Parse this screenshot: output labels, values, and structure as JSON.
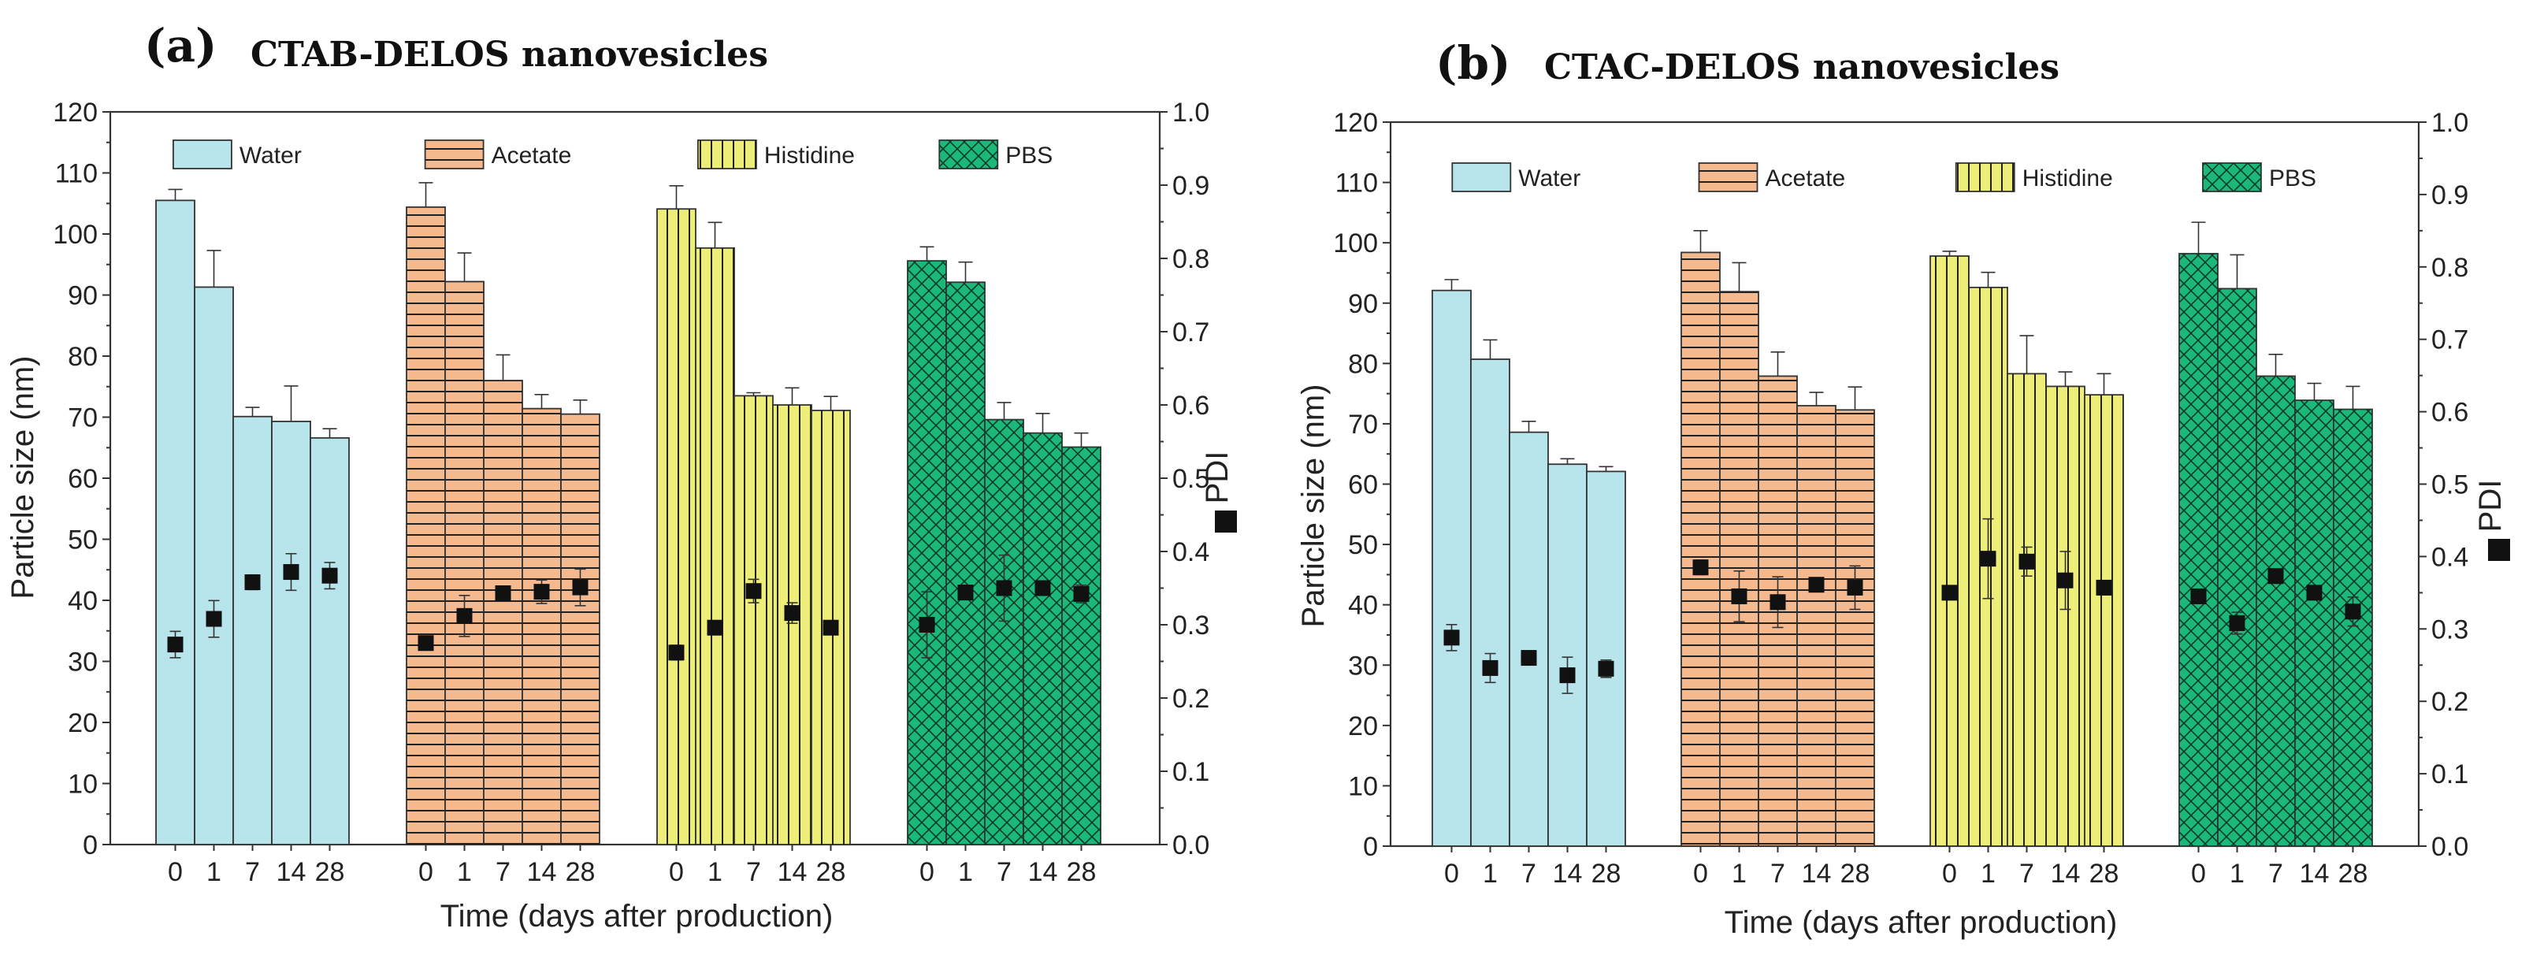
{
  "chart_data": [
    {
      "type": "bar",
      "panel_label": "(a)",
      "title": "CTAB-DELOS nanovesicles",
      "xlabel": "Time (days after production)",
      "ylabel": "Particle size (nm)",
      "y2label": "PDI",
      "ylim": [
        0,
        120
      ],
      "y2lim": [
        0.0,
        1.0
      ],
      "yticks": [
        "0",
        "10",
        "20",
        "30",
        "40",
        "50",
        "60",
        "70",
        "80",
        "90",
        "100",
        "110",
        "120"
      ],
      "y2ticks": [
        "0.0",
        "0.1",
        "0.2",
        "0.3",
        "0.4",
        "0.5",
        "0.6",
        "0.7",
        "0.8",
        "0.9",
        "1.0"
      ],
      "categories": [
        "0",
        "1",
        "7",
        "14",
        "28"
      ],
      "series": [
        {
          "name": "Water",
          "color": "#b8e4ec",
          "pattern": "none",
          "values": [
            105.5,
            91.3,
            70.1,
            69.3,
            66.6
          ],
          "errors": [
            1.8,
            6.0,
            1.5,
            5.8,
            1.5
          ],
          "pdi": [
            0.273,
            0.308,
            0.358,
            0.372,
            0.367
          ],
          "pdi_errors": [
            0.018,
            0.025,
            0.01,
            0.025,
            0.018
          ]
        },
        {
          "name": "Acetate",
          "color": "#f5b990",
          "pattern": "hlines",
          "values": [
            104.4,
            92.2,
            76.0,
            71.4,
            70.5
          ],
          "errors": [
            4.0,
            4.7,
            4.2,
            2.3,
            2.3
          ],
          "pdi": [
            0.275,
            0.312,
            0.343,
            0.345,
            0.351
          ],
          "pdi_errors": [
            0.006,
            0.028,
            0.006,
            0.016,
            0.025
          ]
        },
        {
          "name": "Histidine",
          "color": "#eded7a",
          "pattern": "vlines",
          "values": [
            104.1,
            97.7,
            73.5,
            72.0,
            71.1
          ],
          "errors": [
            3.8,
            4.2,
            0.5,
            2.8,
            2.3
          ],
          "pdi": [
            0.262,
            0.296,
            0.346,
            0.316,
            0.296
          ],
          "pdi_errors": [
            0.01,
            0.006,
            0.016,
            0.014,
            0.006
          ]
        },
        {
          "name": "PBS",
          "color": "#1cb87a",
          "pattern": "crosshatch",
          "values": [
            95.6,
            92.1,
            69.6,
            67.4,
            65.1
          ],
          "errors": [
            2.3,
            3.3,
            2.8,
            3.2,
            2.3
          ],
          "pdi": [
            0.3,
            0.344,
            0.35,
            0.35,
            0.342
          ],
          "pdi_errors": [
            0.045,
            0.006,
            0.045,
            0.006,
            0.012
          ]
        }
      ]
    },
    {
      "type": "bar",
      "panel_label": "(b)",
      "title": "CTAC-DELOS nanovesicles",
      "xlabel": "Time (days after production)",
      "ylabel": "Particle size (nm)",
      "y2label": "PDI",
      "ylim": [
        0,
        120
      ],
      "y2lim": [
        0.0,
        1.0
      ],
      "yticks": [
        "0",
        "10",
        "20",
        "30",
        "40",
        "50",
        "60",
        "70",
        "80",
        "90",
        "100",
        "110",
        "120"
      ],
      "y2ticks": [
        "0.0",
        "0.1",
        "0.2",
        "0.3",
        "0.4",
        "0.5",
        "0.6",
        "0.7",
        "0.8",
        "0.9",
        "1.0"
      ],
      "categories": [
        "0",
        "1",
        "7",
        "14",
        "28"
      ],
      "series": [
        {
          "name": "Water",
          "color": "#b8e4ec",
          "pattern": "none",
          "values": [
            92.1,
            80.7,
            68.6,
            63.3,
            62.1
          ],
          "errors": [
            1.8,
            3.2,
            1.8,
            0.9,
            0.8
          ],
          "pdi": [
            0.288,
            0.246,
            0.26,
            0.236,
            0.245
          ],
          "pdi_errors": [
            0.018,
            0.02,
            0.008,
            0.025,
            0.012
          ]
        },
        {
          "name": "Acetate",
          "color": "#f5b990",
          "pattern": "hlines",
          "values": [
            98.4,
            91.9,
            77.9,
            73.0,
            72.3
          ],
          "errors": [
            3.6,
            4.8,
            4.0,
            2.2,
            3.8
          ],
          "pdi": [
            0.385,
            0.345,
            0.337,
            0.361,
            0.357
          ],
          "pdi_errors": [
            0.01,
            0.035,
            0.035,
            0.006,
            0.03
          ]
        },
        {
          "name": "Histidine",
          "color": "#eded7a",
          "pattern": "vlines",
          "values": [
            97.8,
            92.6,
            78.3,
            76.2,
            74.8
          ],
          "errors": [
            0.8,
            2.5,
            6.3,
            2.4,
            3.5
          ],
          "pdi": [
            0.35,
            0.397,
            0.393,
            0.367,
            0.357
          ],
          "pdi_errors": [
            0.006,
            0.055,
            0.02,
            0.04,
            0.006
          ]
        },
        {
          "name": "PBS",
          "color": "#1cb87a",
          "pattern": "crosshatch",
          "values": [
            98.2,
            92.4,
            77.9,
            73.9,
            72.4
          ],
          "errors": [
            5.2,
            5.6,
            3.6,
            2.8,
            3.8
          ],
          "pdi": [
            0.345,
            0.308,
            0.373,
            0.35,
            0.324
          ],
          "pdi_errors": [
            0.006,
            0.015,
            0.01,
            0.006,
            0.02
          ]
        }
      ]
    }
  ]
}
